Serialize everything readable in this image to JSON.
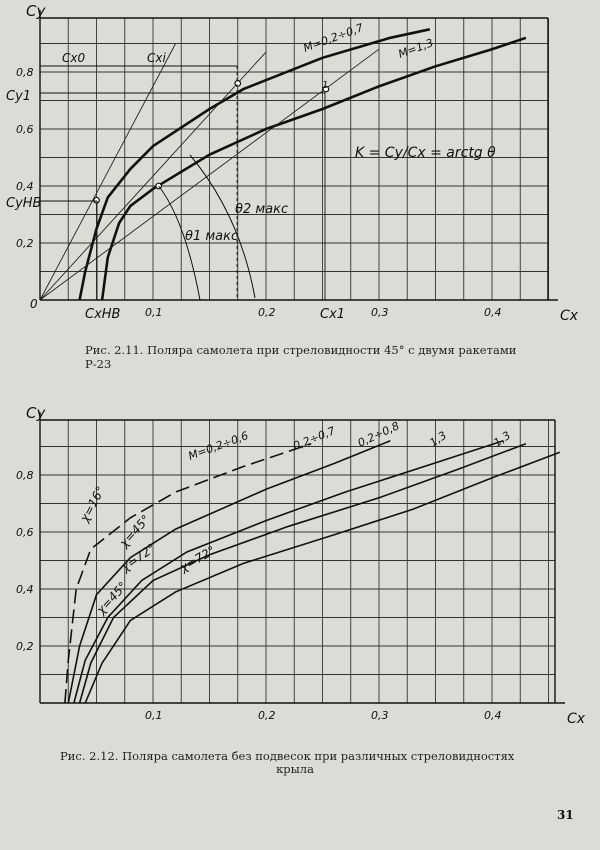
{
  "figure1": {
    "caption": "Рис. 2.11. Поляра самолета при стреловидности 45° с двумя ракетами Р-23",
    "y_axis_label": "Cy",
    "x_axis_label": "Cx",
    "origin_label": "0",
    "curve_labels": [
      "M=0,2÷0,7",
      "M=1,3"
    ],
    "formula": "K = Cy/Cx = arctg θ",
    "annotations": [
      "Cx0",
      "Cxi",
      "Cy1",
      "CyНВ",
      "CxНВ",
      "Cx1",
      "θ1 макс",
      "θ2 макс",
      "1"
    ],
    "chart_data": {
      "type": "line",
      "xlabel": "Cx",
      "ylabel": "Cy",
      "x_ticks": [
        "0,1",
        "0,2",
        "0,3",
        "0,4"
      ],
      "y_ticks": [
        "0,2",
        "0,4",
        "0,6",
        "0,8"
      ],
      "xlim": [
        0,
        0.45
      ],
      "ylim": [
        0,
        0.95
      ],
      "grid": true,
      "series": [
        {
          "name": "M=0,2÷0,7",
          "points": [
            [
              0.035,
              0
            ],
            [
              0.04,
              0.1
            ],
            [
              0.05,
              0.25
            ],
            [
              0.06,
              0.36
            ],
            [
              0.08,
              0.46
            ],
            [
              0.1,
              0.54
            ],
            [
              0.15,
              0.67
            ],
            [
              0.18,
              0.74
            ],
            [
              0.25,
              0.85
            ],
            [
              0.31,
              0.92
            ],
            [
              0.345,
              0.95
            ]
          ]
        },
        {
          "name": "M=1,3",
          "points": [
            [
              0.055,
              0
            ],
            [
              0.06,
              0.15
            ],
            [
              0.07,
              0.27
            ],
            [
              0.08,
              0.33
            ],
            [
              0.1,
              0.39
            ],
            [
              0.15,
              0.51
            ],
            [
              0.2,
              0.6
            ],
            [
              0.25,
              0.67
            ],
            [
              0.3,
              0.75
            ],
            [
              0.35,
              0.82
            ],
            [
              0.4,
              0.88
            ],
            [
              0.43,
              0.92
            ]
          ]
        }
      ],
      "marked_points": [
        [
          0.05,
          0.35
        ],
        [
          0.105,
          0.4
        ],
        [
          0.175,
          0.76
        ],
        [
          0.253,
          0.74
        ]
      ]
    }
  },
  "figure2": {
    "caption_line1": "Рис. 2.12. Поляра самолета без подвесок при различных стреловидностях",
    "caption_line2": "крыла",
    "y_axis_label": "Cy",
    "x_axis_label": "Cx",
    "sweep_labels": [
      "χ=16°",
      "χ=45°",
      "χ=72°",
      "χ=45°",
      "χ=72°"
    ],
    "mach_labels": [
      "M=0,2÷0,6",
      "0,2÷0,7",
      "0,2÷0,8",
      "1,3",
      "1,3"
    ],
    "chart_data": {
      "type": "line",
      "xlabel": "Cx",
      "ylabel": "Cy",
      "x_ticks": [
        "0,1",
        "0,2",
        "0,3",
        "0,4"
      ],
      "y_ticks": [
        "0,2",
        "0,4",
        "0,6",
        "0,8"
      ],
      "xlim": [
        0,
        0.45
      ],
      "ylim": [
        0,
        0.95
      ],
      "grid": true,
      "series": [
        {
          "name": "χ=16° M=0,2÷0,6",
          "dashed": true,
          "points": [
            [
              0.022,
              0
            ],
            [
              0.025,
              0.15
            ],
            [
              0.032,
              0.4
            ],
            [
              0.045,
              0.54
            ],
            [
              0.08,
              0.65
            ],
            [
              0.12,
              0.74
            ],
            [
              0.18,
              0.83
            ],
            [
              0.24,
              0.91
            ]
          ]
        },
        {
          "name": "χ=45° M=0,2÷0,7",
          "points": [
            [
              0.025,
              0
            ],
            [
              0.035,
              0.2
            ],
            [
              0.05,
              0.38
            ],
            [
              0.08,
              0.51
            ],
            [
              0.12,
              0.61
            ],
            [
              0.2,
              0.75
            ],
            [
              0.26,
              0.84
            ],
            [
              0.31,
              0.92
            ]
          ]
        },
        {
          "name": "χ=72° M=0,2÷0,8",
          "points": [
            [
              0.03,
              0
            ],
            [
              0.04,
              0.15
            ],
            [
              0.06,
              0.3
            ],
            [
              0.09,
              0.43
            ],
            [
              0.13,
              0.53
            ],
            [
              0.2,
              0.64
            ],
            [
              0.27,
              0.74
            ],
            [
              0.34,
              0.83
            ],
            [
              0.41,
              0.92
            ]
          ]
        },
        {
          "name": "χ=45° M=1,3",
          "points": [
            [
              0.035,
              0
            ],
            [
              0.045,
              0.14
            ],
            [
              0.065,
              0.3
            ],
            [
              0.1,
              0.43
            ],
            [
              0.15,
              0.52
            ],
            [
              0.22,
              0.62
            ],
            [
              0.3,
              0.72
            ],
            [
              0.37,
              0.82
            ],
            [
              0.43,
              0.91
            ]
          ]
        },
        {
          "name": "χ=72° M=1,3",
          "points": [
            [
              0.04,
              0
            ],
            [
              0.055,
              0.14
            ],
            [
              0.08,
              0.29
            ],
            [
              0.12,
              0.39
            ],
            [
              0.18,
              0.49
            ],
            [
              0.26,
              0.59
            ],
            [
              0.33,
              0.68
            ],
            [
              0.4,
              0.79
            ],
            [
              0.46,
              0.88
            ]
          ]
        }
      ]
    }
  },
  "page_number": "31"
}
